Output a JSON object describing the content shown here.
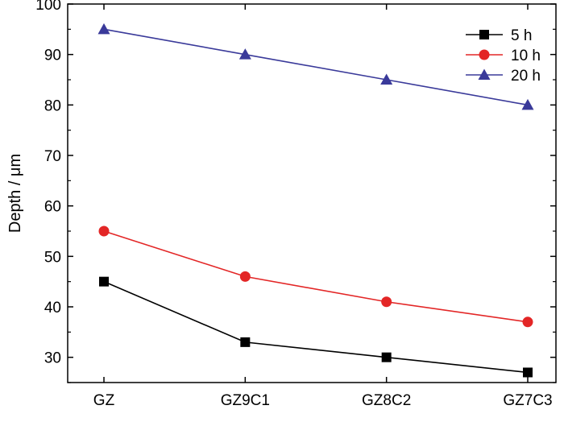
{
  "chart_data": {
    "type": "line",
    "categories": [
      "GZ",
      "GZ9C1",
      "GZ8C2",
      "GZ7C3"
    ],
    "ylabel": "Depth / μm",
    "xlabel": "",
    "ylim": [
      25,
      100
    ],
    "yticks": [
      30,
      40,
      50,
      60,
      70,
      80,
      90,
      100
    ],
    "grid": false,
    "legend_position": "top-right",
    "series": [
      {
        "name": "5 h",
        "values": [
          45,
          33,
          30,
          27
        ],
        "color": "#000000",
        "marker": "square"
      },
      {
        "name": "10 h",
        "values": [
          55,
          46,
          41,
          37
        ],
        "color": "#e32626",
        "marker": "circle"
      },
      {
        "name": "20 h",
        "values": [
          95,
          90,
          85,
          80
        ],
        "color": "#3a3a9a",
        "marker": "triangle"
      }
    ]
  }
}
